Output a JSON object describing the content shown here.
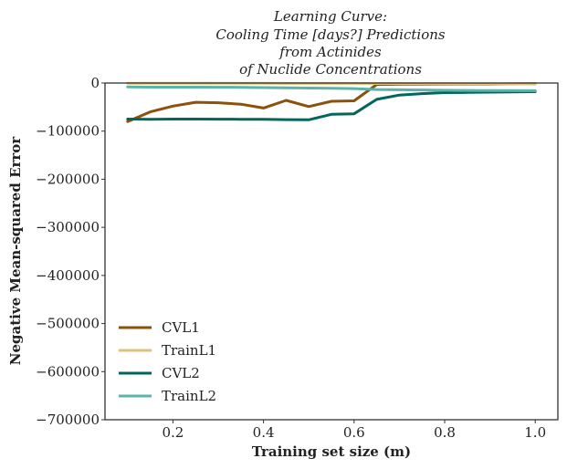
{
  "chart_data": {
    "type": "line",
    "title_lines": [
      "Learning Curve:",
      "Cooling Time [days?] Predictions",
      "from Actinides",
      "of Nuclide Concentrations"
    ],
    "xlabel": "Training set size (m)",
    "ylabel": "Negative Mean-squared Error",
    "xlim": [
      0.05,
      1.05
    ],
    "ylim": [
      -700000,
      0
    ],
    "xticks": [
      0.2,
      0.4,
      0.6,
      0.8,
      1.0
    ],
    "xtick_labels": [
      "0.2",
      "0.4",
      "0.6",
      "0.8",
      "1.0"
    ],
    "yticks": [
      0,
      -100000,
      -200000,
      -300000,
      -400000,
      -500000,
      -600000,
      -700000
    ],
    "ytick_labels": [
      "0",
      "−100000",
      "−200000",
      "−300000",
      "−400000",
      "−500000",
      "−600000",
      "−700000"
    ],
    "grid": false,
    "legend_position": "lower-left",
    "x": [
      0.1,
      0.15,
      0.2,
      0.25,
      0.3,
      0.35,
      0.4,
      0.45,
      0.5,
      0.55,
      0.6,
      0.65,
      0.7,
      0.75,
      0.8,
      0.85,
      0.9,
      0.95,
      1.0
    ],
    "series": [
      {
        "name": "CVL1",
        "color": "#8c510a",
        "values": [
          -80000,
          -60000,
          -48000,
          -40000,
          -41000,
          -44000,
          -52000,
          -36000,
          -49000,
          -38000,
          -37000,
          -3000,
          -2500,
          -2500,
          -2000,
          -2000,
          -2000,
          -1800,
          -1500
        ]
      },
      {
        "name": "TrainL1",
        "color": "#dfc27d",
        "values": [
          -500,
          -500,
          -500,
          -500,
          -600,
          -600,
          -600,
          -700,
          -700,
          -800,
          -800,
          -900,
          -1000,
          -1100,
          -1200,
          -1400,
          -1600,
          -1800,
          -2000
        ]
      },
      {
        "name": "CVL2",
        "color": "#01665e",
        "values": [
          -75000,
          -75500,
          -75000,
          -75000,
          -75200,
          -75300,
          -75500,
          -76000,
          -76500,
          -65000,
          -64000,
          -34000,
          -25000,
          -22000,
          -20000,
          -19500,
          -19000,
          -18500,
          -18000
        ]
      },
      {
        "name": "TrainL2",
        "color": "#5ab4ac",
        "values": [
          -8000,
          -8500,
          -8500,
          -8500,
          -8800,
          -9000,
          -9500,
          -10000,
          -10500,
          -11000,
          -11500,
          -13500,
          -14000,
          -14500,
          -15000,
          -15300,
          -15500,
          -15700,
          -16000
        ]
      }
    ]
  }
}
